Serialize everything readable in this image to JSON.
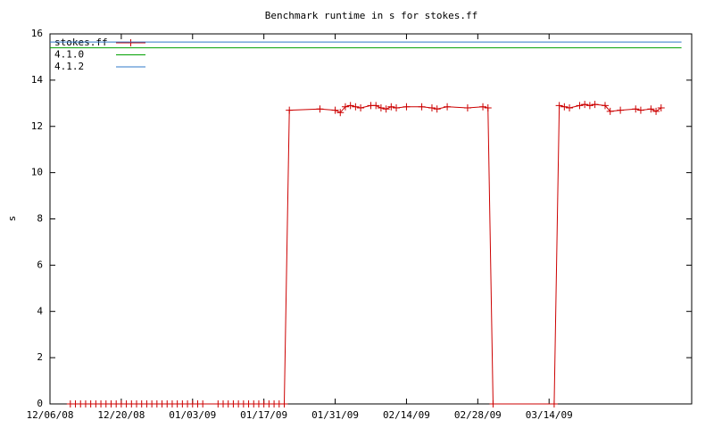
{
  "chart_data": {
    "type": "line",
    "title": "Benchmark runtime in s for stokes.ff",
    "ylabel": "s",
    "xlim": [
      "12/06/08",
      "04/11/09"
    ],
    "xticks": [
      "12/06/08",
      "12/20/08",
      "01/03/09",
      "01/17/09",
      "01/31/09",
      "02/14/09",
      "02/28/09",
      "03/14/09"
    ],
    "ylim": [
      0,
      16
    ],
    "yticks": [
      0,
      2,
      4,
      6,
      8,
      10,
      12,
      14,
      16
    ],
    "legend": "top-left",
    "series": [
      {
        "name": "stokes.ff",
        "color": "#cc0000",
        "markers": true,
        "x": [
          "12/10/08",
          "12/11/08",
          "12/12/08",
          "12/13/08",
          "12/14/08",
          "12/15/08",
          "12/16/08",
          "12/17/08",
          "12/18/08",
          "12/19/08",
          "12/20/08",
          "12/21/08",
          "12/22/08",
          "12/23/08",
          "12/24/08",
          "12/25/08",
          "12/26/08",
          "12/27/08",
          "12/28/08",
          "12/29/08",
          "12/30/08",
          "12/31/08",
          "01/01/09",
          "01/02/09",
          "01/03/09",
          "01/04/09",
          "01/05/09",
          "01/08/09",
          "01/09/09",
          "01/10/09",
          "01/11/09",
          "01/12/09",
          "01/13/09",
          "01/14/09",
          "01/15/09",
          "01/16/09",
          "01/17/09",
          "01/18/09",
          "01/19/09",
          "01/20/09",
          "01/21/09",
          "01/22/09",
          "01/28/09",
          "01/31/09",
          "02/01/09",
          "02/02/09",
          "02/03/09",
          "02/04/09",
          "02/05/09",
          "02/07/09",
          "02/08/09",
          "02/09/09",
          "02/10/09",
          "02/11/09",
          "02/12/09",
          "02/14/09",
          "02/17/09",
          "02/19/09",
          "02/20/09",
          "02/22/09",
          "02/26/09",
          "03/01/09",
          "03/02/09",
          "03/03/09",
          "03/15/09",
          "03/16/09",
          "03/17/09",
          "03/18/09",
          "03/20/09",
          "03/21/09",
          "03/22/09",
          "03/23/09",
          "03/25/09",
          "03/26/09",
          "03/28/09",
          "03/31/09",
          "04/01/09",
          "04/03/09",
          "04/04/09",
          "04/05/09"
        ],
        "values": [
          0,
          0,
          0,
          0,
          0,
          0,
          0,
          0,
          0,
          0,
          0,
          0,
          0,
          0,
          0,
          0,
          0,
          0,
          0,
          0,
          0,
          0,
          0,
          0,
          0,
          0,
          0,
          0,
          0,
          0,
          0,
          0,
          0,
          0,
          0,
          0,
          0,
          0,
          0,
          0,
          0,
          12.7,
          12.75,
          12.7,
          12.6,
          12.85,
          12.9,
          12.85,
          12.8,
          12.9,
          12.9,
          12.8,
          12.75,
          12.85,
          12.8,
          12.85,
          12.85,
          12.8,
          12.75,
          12.85,
          12.8,
          12.85,
          12.8,
          0,
          0,
          12.9,
          12.85,
          12.8,
          12.9,
          12.95,
          12.9,
          12.95,
          12.9,
          12.65,
          12.7,
          12.75,
          12.7,
          12.75,
          12.65,
          12.8
        ]
      },
      {
        "name": "4.1.0",
        "color": "#00a000",
        "markers": false,
        "x": [
          "12/06/08",
          "04/09/09"
        ],
        "values": [
          15.4,
          15.4
        ]
      },
      {
        "name": "4.1.2",
        "color": "#2f78c8",
        "markers": false,
        "x": [
          "12/06/08",
          "04/09/09"
        ],
        "values": [
          15.65,
          15.65
        ]
      }
    ]
  }
}
